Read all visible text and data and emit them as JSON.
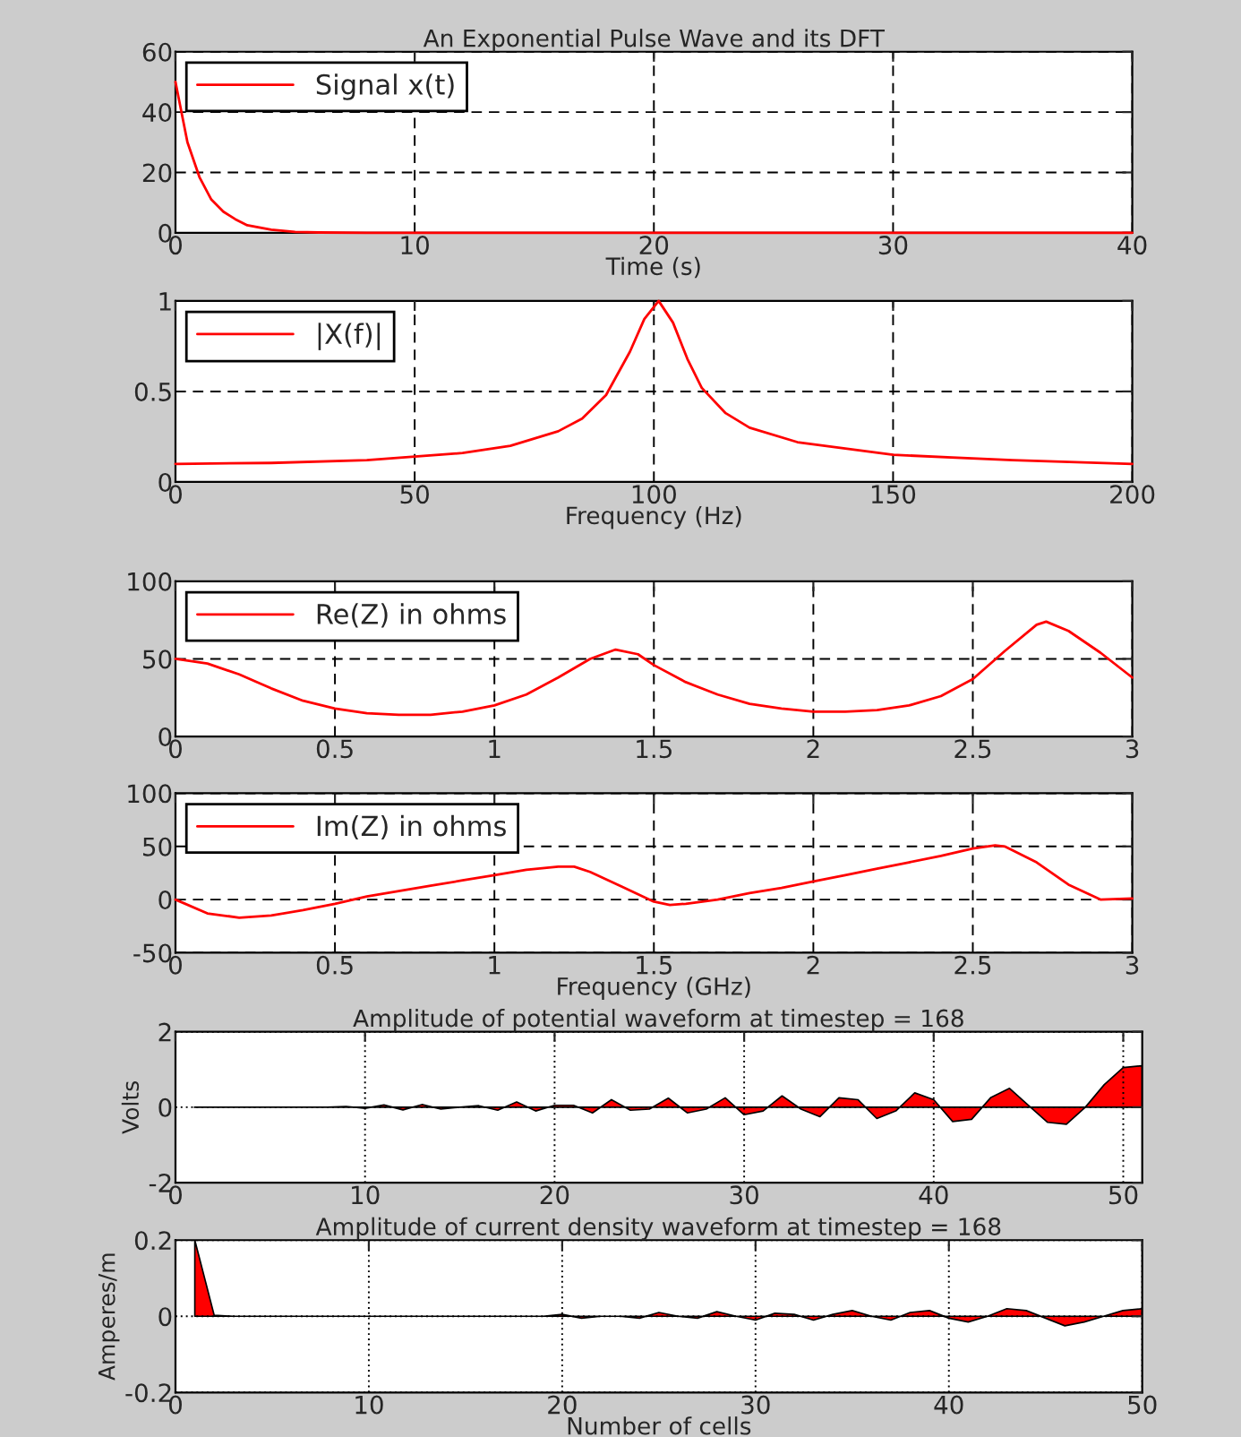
{
  "chart_data": [
    {
      "type": "line",
      "title": "An Exponential Pulse Wave and its DFT",
      "xlabel": "Time (s)",
      "xlim": [
        0,
        40
      ],
      "ylim": [
        0,
        60
      ],
      "xticks": [
        0,
        10,
        20,
        30,
        40
      ],
      "yticks": [
        0,
        20,
        40,
        60
      ],
      "grid": true,
      "legend": "top left",
      "series": [
        {
          "name": "Signal x(t)",
          "color": "#ff0000",
          "x": [
            0,
            0.5,
            1,
            1.5,
            2,
            2.5,
            3,
            4,
            5,
            6,
            8,
            10,
            20,
            30,
            40
          ],
          "values": [
            50,
            30,
            18.5,
            11,
            7,
            4.5,
            2.5,
            1,
            0.3,
            0.1,
            0,
            0,
            0,
            0,
            0
          ]
        }
      ]
    },
    {
      "type": "line",
      "xlabel": "Frequency (Hz)",
      "xlim": [
        0,
        200
      ],
      "ylim": [
        0,
        1
      ],
      "xticks": [
        0,
        50,
        100,
        150,
        200
      ],
      "yticks": [
        0,
        0.5,
        1
      ],
      "grid": true,
      "legend": "top left",
      "series": [
        {
          "name": "|X(f)|",
          "color": "#ff0000",
          "x": [
            0,
            20,
            40,
            50,
            60,
            70,
            80,
            85,
            90,
            95,
            98,
            101,
            104,
            107,
            110,
            115,
            120,
            130,
            150,
            175,
            200
          ],
          "values": [
            0.1,
            0.105,
            0.12,
            0.14,
            0.16,
            0.2,
            0.28,
            0.35,
            0.48,
            0.72,
            0.9,
            1.0,
            0.88,
            0.68,
            0.52,
            0.38,
            0.3,
            0.22,
            0.15,
            0.12,
            0.1
          ]
        }
      ]
    },
    {
      "type": "line",
      "xlim": [
        0,
        3
      ],
      "ylim": [
        0,
        100
      ],
      "xticks": [
        0,
        0.5,
        1,
        1.5,
        2,
        2.5,
        3
      ],
      "yticks": [
        0,
        50,
        100
      ],
      "grid": true,
      "legend": "top left",
      "series": [
        {
          "name": "Re(Z) in ohms",
          "color": "#ff0000",
          "x": [
            0,
            0.1,
            0.2,
            0.3,
            0.4,
            0.5,
            0.6,
            0.7,
            0.8,
            0.9,
            1.0,
            1.1,
            1.2,
            1.3,
            1.38,
            1.45,
            1.5,
            1.6,
            1.7,
            1.8,
            1.9,
            2.0,
            2.1,
            2.2,
            2.3,
            2.4,
            2.5,
            2.6,
            2.7,
            2.73,
            2.8,
            2.9,
            3.0
          ],
          "values": [
            50,
            47,
            40,
            31,
            23,
            18,
            15,
            14,
            14,
            16,
            20,
            27,
            38,
            50,
            56,
            53,
            46,
            35,
            27,
            21,
            18,
            16,
            16,
            17,
            20,
            26,
            37,
            55,
            72,
            74,
            68,
            54,
            38
          ]
        }
      ]
    },
    {
      "type": "line",
      "xlabel": "Frequency (GHz)",
      "xlim": [
        0,
        3
      ],
      "ylim": [
        -50,
        100
      ],
      "xticks": [
        0,
        0.5,
        1,
        1.5,
        2,
        2.5,
        3
      ],
      "yticks": [
        -50,
        0,
        50,
        100
      ],
      "grid": true,
      "legend": "top left",
      "series": [
        {
          "name": "Im(Z) in ohms",
          "color": "#ff0000",
          "x": [
            0,
            0.1,
            0.2,
            0.3,
            0.4,
            0.5,
            0.6,
            0.7,
            0.8,
            0.9,
            1.0,
            1.1,
            1.2,
            1.25,
            1.3,
            1.4,
            1.5,
            1.55,
            1.6,
            1.7,
            1.8,
            1.9,
            2.0,
            2.1,
            2.2,
            2.3,
            2.4,
            2.5,
            2.57,
            2.6,
            2.7,
            2.8,
            2.9,
            3.0
          ],
          "values": [
            0,
            -13,
            -17,
            -15,
            -10,
            -4,
            3,
            8,
            13,
            18,
            23,
            28,
            31,
            31,
            26,
            12,
            -2,
            -5,
            -4,
            0,
            6,
            11,
            17,
            23,
            29,
            35,
            41,
            48,
            51,
            50,
            35,
            14,
            0,
            1
          ]
        }
      ]
    },
    {
      "type": "area",
      "title": "Amplitude of potential waveform at timestep = 168",
      "ylabel": "Volts",
      "xlim": [
        0,
        51
      ],
      "ylim": [
        -2,
        2
      ],
      "xticks": [
        0,
        10,
        20,
        30,
        40,
        50
      ],
      "yticks": [
        -2,
        0,
        2
      ],
      "grid": true,
      "series": [
        {
          "color": "#ff0000",
          "x": [
            1,
            2,
            3,
            4,
            5,
            6,
            7,
            8,
            9,
            10,
            11,
            12,
            13,
            14,
            15,
            16,
            17,
            18,
            19,
            20,
            21,
            22,
            23,
            24,
            25,
            26,
            27,
            28,
            29,
            30,
            31,
            32,
            33,
            34,
            35,
            36,
            37,
            38,
            39,
            40,
            41,
            42,
            43,
            44,
            45,
            46,
            47,
            48,
            49,
            50,
            51
          ],
          "values": [
            0,
            0,
            0,
            0,
            0,
            0,
            0,
            0,
            0.02,
            -0.03,
            0.06,
            -0.07,
            0.07,
            -0.05,
            0,
            0.04,
            -0.08,
            0.14,
            -0.1,
            0.05,
            0.05,
            -0.15,
            0.2,
            -0.08,
            -0.05,
            0.24,
            -0.15,
            -0.05,
            0.25,
            -0.2,
            -0.1,
            0.3,
            -0.05,
            -0.25,
            0.25,
            0.2,
            -0.3,
            -0.1,
            0.38,
            0.2,
            -0.38,
            -0.32,
            0.25,
            0.5,
            0.05,
            -0.4,
            -0.45,
            0,
            0.6,
            1.05,
            1.1
          ]
        }
      ]
    },
    {
      "type": "area",
      "title": "Amplitude of current density waveform at timestep = 168",
      "xlabel": "Number of cells",
      "ylabel": "Amperes/m",
      "xlim": [
        0,
        50
      ],
      "ylim": [
        -0.2,
        0.2
      ],
      "xticks": [
        0,
        10,
        20,
        30,
        40,
        50
      ],
      "yticks": [
        -0.2,
        0,
        0.2
      ],
      "grid": true,
      "series": [
        {
          "color": "#ff0000",
          "x": [
            1,
            2,
            3,
            4,
            5,
            6,
            7,
            8,
            9,
            10,
            11,
            12,
            13,
            14,
            15,
            16,
            17,
            18,
            19,
            20,
            21,
            22,
            23,
            24,
            25,
            26,
            27,
            28,
            29,
            30,
            31,
            32,
            33,
            34,
            35,
            36,
            37,
            38,
            39,
            40,
            41,
            42,
            43,
            44,
            45,
            46,
            47,
            48,
            49,
            50
          ],
          "values": [
            0.2,
            0.003,
            0,
            0,
            0,
            0,
            0,
            0,
            0,
            0,
            0,
            0,
            0,
            0,
            0,
            0,
            0,
            0,
            0,
            0.005,
            -0.005,
            0,
            0,
            -0.005,
            0.01,
            0,
            -0.005,
            0.012,
            0,
            -0.01,
            0.008,
            0.005,
            -0.01,
            0.005,
            0.015,
            0,
            -0.01,
            0.01,
            0.015,
            -0.005,
            -0.015,
            0,
            0.02,
            0.015,
            -0.005,
            -0.025,
            -0.015,
            0,
            0.015,
            0.02
          ]
        }
      ]
    }
  ]
}
